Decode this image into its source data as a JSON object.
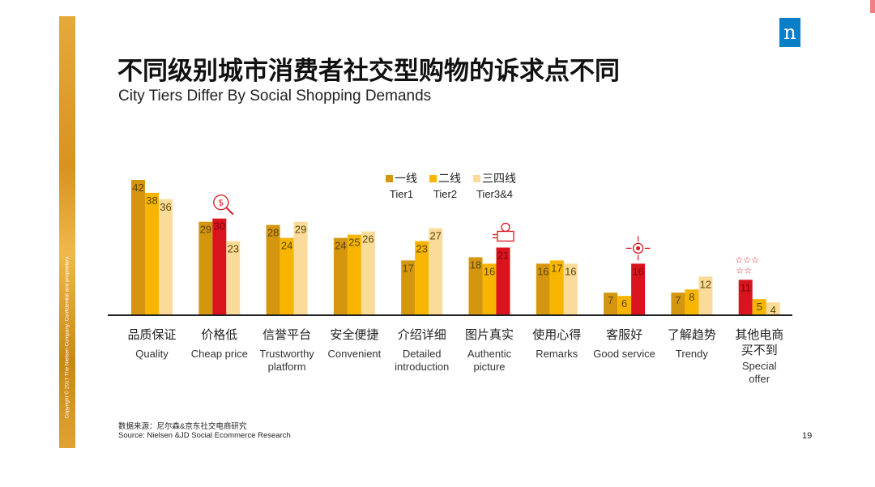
{
  "slide": {
    "title_cn": "不同级别城市消费者社交型购物的诉求点不同",
    "title_en": "City Tiers Differ By Social Shopping Demands",
    "logo": "n",
    "copyright": "Copyright © 2017 The Nielsen Company. Confidential and proprietary.",
    "source_cn": "数据来源：尼尔森&京东社交电商研究",
    "source_en": "Source: Nielsen &JD Social Ecommerce Research",
    "page_number": "19"
  },
  "colors": {
    "tier1": "#D4960E",
    "tier2": "#F7B500",
    "tier3": "#FBDB9A",
    "highlight": "#D9141E",
    "axis": "#222222",
    "band": "#DDA030"
  },
  "legend": [
    {
      "cn": "一线",
      "en": "Tier1"
    },
    {
      "cn": "二线",
      "en": "Tier2"
    },
    {
      "cn": "三四线",
      "en": "Tier3&4"
    }
  ],
  "chart_data": {
    "type": "bar",
    "categories": [
      {
        "cn": "品质保证",
        "en": [
          "Quality"
        ]
      },
      {
        "cn": "价格低",
        "en": [
          "Cheap price"
        ]
      },
      {
        "cn": "信誉平台",
        "en": [
          "Trustworthy",
          "platform"
        ]
      },
      {
        "cn": "安全便捷",
        "en": [
          "Convenient"
        ]
      },
      {
        "cn": "介绍详细",
        "en": [
          "Detailed",
          "introduction"
        ]
      },
      {
        "cn": "图片真实",
        "en": [
          "Authentic",
          "picture"
        ]
      },
      {
        "cn": "使用心得",
        "en": [
          "Remarks"
        ]
      },
      {
        "cn": "客服好",
        "en": [
          "Good service"
        ]
      },
      {
        "cn": "了解趋势",
        "en": [
          "Trendy"
        ]
      },
      {
        "cn": "其他电商买不到",
        "cn_lines": [
          "其他电商",
          "买不到"
        ],
        "en": [
          "Special",
          "offer"
        ]
      }
    ],
    "series": [
      {
        "name": "一线 Tier1",
        "values": [
          42,
          29,
          28,
          24,
          17,
          18,
          16,
          7,
          7,
          11
        ]
      },
      {
        "name": "二线 Tier2",
        "values": [
          38,
          30,
          24,
          25,
          23,
          16,
          17,
          6,
          8,
          5
        ]
      },
      {
        "name": "三四线 Tier3&4",
        "values": [
          36,
          23,
          29,
          26,
          27,
          21,
          16,
          16,
          12,
          4
        ]
      }
    ],
    "highlighted": [
      {
        "category": 1,
        "series": 1,
        "icon": "price-search-icon"
      },
      {
        "category": 5,
        "series": 2,
        "icon": "photo-person-icon"
      },
      {
        "category": 7,
        "series": 2,
        "icon": "service-arrows-icon"
      },
      {
        "category": 9,
        "series": 0,
        "icon": "stars-icon"
      }
    ],
    "ylim": [
      0,
      42
    ],
    "grid": false,
    "legend_position": "top"
  }
}
